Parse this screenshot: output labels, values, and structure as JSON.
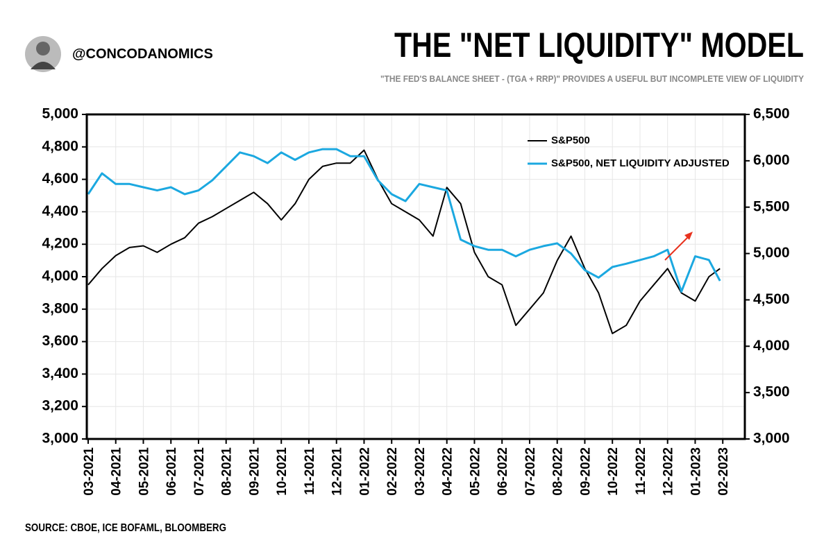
{
  "header": {
    "handle": "@CONCODANOMICS"
  },
  "chart_data": {
    "type": "line",
    "title": "THE \"NET LIQUIDITY\" MODEL",
    "subtitle": "\"THE FED'S BALANCE SHEET - (TGA + RRP)\" PROVIDES A USEFUL BUT INCOMPLETE VIEW OF LIQUIDITY",
    "source": "SOURCE: CBOE, ICE BOFAML, BLOOMBERG",
    "x": [
      0,
      0.5,
      1,
      1.5,
      2,
      2.5,
      3,
      3.5,
      4,
      4.5,
      5,
      5.5,
      6,
      6.5,
      7,
      7.5,
      8,
      8.5,
      9,
      9.5,
      10,
      10.5,
      11,
      11.5,
      12,
      12.5,
      13,
      13.5,
      14,
      14.5,
      15,
      15.5,
      16,
      16.5,
      17,
      17.5,
      18,
      18.5,
      19,
      19.5,
      20,
      20.5,
      21,
      21.5,
      22,
      22.5,
      22.9
    ],
    "xlim": [
      -0.05,
      23.8
    ],
    "xticks": [
      {
        "value": 0,
        "label": "03-2021"
      },
      {
        "value": 1,
        "label": "04-2021"
      },
      {
        "value": 2,
        "label": "05-2021"
      },
      {
        "value": 3,
        "label": "06-2021"
      },
      {
        "value": 4,
        "label": "07-2021"
      },
      {
        "value": 5,
        "label": "08-2021"
      },
      {
        "value": 6,
        "label": "09-2021"
      },
      {
        "value": 7,
        "label": "10-2021"
      },
      {
        "value": 8,
        "label": "11-2021"
      },
      {
        "value": 9,
        "label": "12-2021"
      },
      {
        "value": 10,
        "label": "01-2022"
      },
      {
        "value": 11,
        "label": "02-2022"
      },
      {
        "value": 12,
        "label": "03-2022"
      },
      {
        "value": 13,
        "label": "04-2022"
      },
      {
        "value": 14,
        "label": "05-2022"
      },
      {
        "value": 15,
        "label": "06-2022"
      },
      {
        "value": 16,
        "label": "07-2022"
      },
      {
        "value": 17,
        "label": "08-2022"
      },
      {
        "value": 18,
        "label": "09-2022"
      },
      {
        "value": 19,
        "label": "10-2022"
      },
      {
        "value": 20,
        "label": "11-2022"
      },
      {
        "value": 21,
        "label": "12-2022"
      },
      {
        "value": 22,
        "label": "01-2023"
      },
      {
        "value": 23,
        "label": "02-2023"
      }
    ],
    "ylim": [
      3000,
      5000
    ],
    "yticks": [
      {
        "value": 3000,
        "label": "3,000"
      },
      {
        "value": 3200,
        "label": "3,200"
      },
      {
        "value": 3400,
        "label": "3,400"
      },
      {
        "value": 3600,
        "label": "3,600"
      },
      {
        "value": 3800,
        "label": "3,800"
      },
      {
        "value": 4000,
        "label": "4,000"
      },
      {
        "value": 4200,
        "label": "4,200"
      },
      {
        "value": 4400,
        "label": "4,400"
      },
      {
        "value": 4600,
        "label": "4,600"
      },
      {
        "value": 4800,
        "label": "4,800"
      },
      {
        "value": 5000,
        "label": "5,000"
      }
    ],
    "y2lim": [
      3000,
      6500
    ],
    "y2ticks": [
      {
        "value": 3000,
        "label": "3,000"
      },
      {
        "value": 3500,
        "label": "3,500"
      },
      {
        "value": 4000,
        "label": "4,000"
      },
      {
        "value": 4500,
        "label": "4,500"
      },
      {
        "value": 5000,
        "label": "5,000"
      },
      {
        "value": 5500,
        "label": "5,500"
      },
      {
        "value": 6000,
        "label": "6,000"
      },
      {
        "value": 6500,
        "label": "6,500"
      }
    ],
    "grid": true,
    "series": [
      {
        "name": "S&P500",
        "color": "#000000",
        "values": [
          3950,
          4050,
          4130,
          4180,
          4190,
          4150,
          4200,
          4240,
          4330,
          4370,
          4420,
          4470,
          4520,
          4450,
          4350,
          4450,
          4600,
          4680,
          4700,
          4700,
          4780,
          4600,
          4450,
          4400,
          4350,
          4250,
          4550,
          4450,
          4150,
          4000,
          3950,
          3700,
          3800,
          3900,
          4100,
          4250,
          4050,
          3900,
          3650,
          3700,
          3850,
          3950,
          4050,
          3900,
          3850,
          4000,
          4050
        ]
      },
      {
        "name": "S&P500, NET LIQUIDITY ADJUSTED",
        "color": "#1ba8e0",
        "axis": "y2",
        "values": [
          5640,
          5865,
          5750,
          5750,
          5715,
          5680,
          5715,
          5640,
          5680,
          5790,
          5940,
          6090,
          6050,
          5975,
          6090,
          6010,
          6090,
          6125,
          6125,
          6050,
          6050,
          5790,
          5640,
          5565,
          5750,
          5715,
          5680,
          5150,
          5080,
          5040,
          5040,
          4970,
          5040,
          5080,
          5110,
          5000,
          4820,
          4740,
          4855,
          4890,
          4930,
          4970,
          5040,
          4590,
          4970,
          4930,
          4705
        ]
      }
    ]
  }
}
